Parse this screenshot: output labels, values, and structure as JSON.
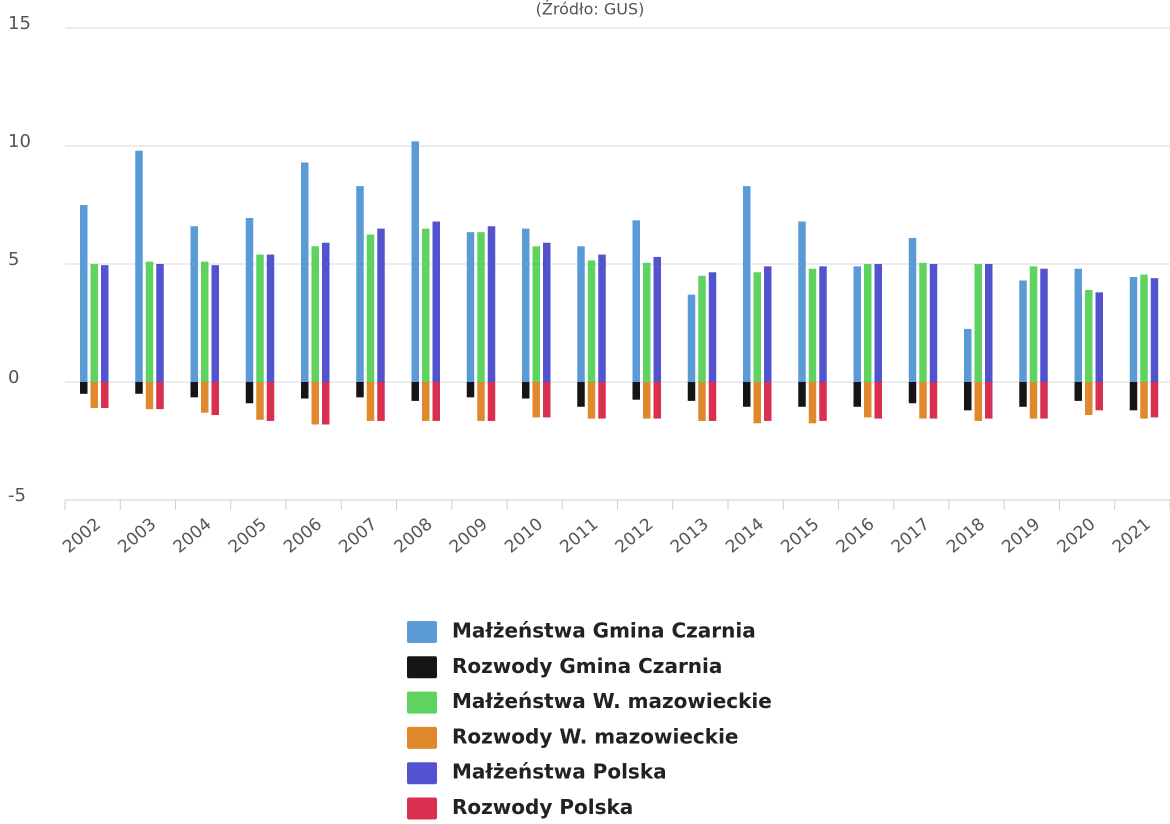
{
  "chart_data": {
    "type": "bar",
    "subtitle": "(Źródło: GUS)",
    "categories": [
      "2002",
      "2003",
      "2004",
      "2005",
      "2006",
      "2007",
      "2008",
      "2009",
      "2010",
      "2011",
      "2012",
      "2013",
      "2014",
      "2015",
      "2016",
      "2017",
      "2018",
      "2019",
      "2020",
      "2021"
    ],
    "series": [
      {
        "name": "Małżeństwa Gmina Czarnia",
        "color": "#5b9bd5",
        "values": [
          7.5,
          9.8,
          6.6,
          6.95,
          9.3,
          8.3,
          10.2,
          6.35,
          6.5,
          5.75,
          6.85,
          3.7,
          8.3,
          6.8,
          4.9,
          6.1,
          2.25,
          4.3,
          4.8,
          4.45
        ]
      },
      {
        "name": "Rozwody Gmina Czarnia",
        "color": "#151515",
        "values": [
          -0.5,
          -0.5,
          -0.65,
          -0.9,
          -0.7,
          -0.65,
          -0.8,
          -0.65,
          -0.7,
          -1.05,
          -0.75,
          -0.8,
          -1.05,
          -1.05,
          -1.05,
          -0.9,
          -1.2,
          -1.05,
          -0.8,
          -1.2
        ]
      },
      {
        "name": "Małżeństwa W. mazowieckie",
        "color": "#5fd35f",
        "values": [
          5.0,
          5.1,
          5.1,
          5.4,
          5.75,
          6.25,
          6.5,
          6.35,
          5.75,
          5.15,
          5.05,
          4.5,
          4.65,
          4.8,
          5.0,
          5.05,
          5.0,
          4.9,
          3.9,
          4.55
        ]
      },
      {
        "name": "Rozwody W. mazowieckie",
        "color": "#e0892c",
        "values": [
          -1.1,
          -1.15,
          -1.3,
          -1.6,
          -1.8,
          -1.65,
          -1.65,
          -1.65,
          -1.5,
          -1.55,
          -1.55,
          -1.65,
          -1.75,
          -1.75,
          -1.5,
          -1.55,
          -1.65,
          -1.55,
          -1.4,
          -1.55
        ]
      },
      {
        "name": "Małżeństwa Polska",
        "color": "#5353cf",
        "values": [
          4.95,
          5.0,
          4.95,
          5.4,
          5.9,
          6.5,
          6.8,
          6.6,
          5.9,
          5.4,
          5.3,
          4.65,
          4.9,
          4.9,
          5.0,
          5.0,
          5.0,
          4.8,
          3.8,
          4.4
        ]
      },
      {
        "name": "Rozwody Polska",
        "color": "#d9304f",
        "values": [
          -1.1,
          -1.15,
          -1.4,
          -1.65,
          -1.8,
          -1.65,
          -1.65,
          -1.65,
          -1.5,
          -1.55,
          -1.55,
          -1.65,
          -1.65,
          -1.65,
          -1.55,
          -1.55,
          -1.55,
          -1.55,
          -1.2,
          -1.5
        ]
      }
    ],
    "ylim": [
      -5,
      15
    ],
    "yticks": [
      -5,
      0,
      5,
      10,
      15
    ],
    "grid": true
  }
}
